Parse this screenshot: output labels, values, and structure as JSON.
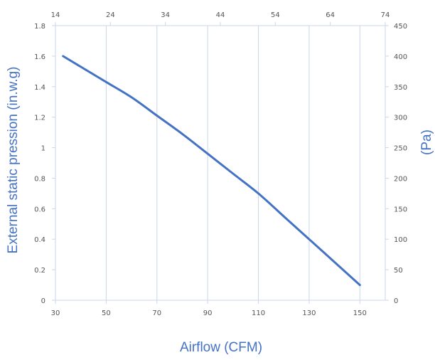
{
  "colors": {
    "series": "#4472c4",
    "grid": "#c9d7ec",
    "tick_text": "#555555",
    "axis_title": "#4472c4"
  },
  "chart_data": {
    "type": "line",
    "title": "",
    "xlabel": "Airflow (CFM)",
    "ylabel": "External static pression (in.w.g)",
    "y2label": "(Pa)",
    "xlim": [
      30,
      160
    ],
    "ylim": [
      0,
      1.8
    ],
    "x2lim": [
      14,
      74
    ],
    "y2lim": [
      0,
      450
    ],
    "x_ticks": [
      "30",
      "50",
      "70",
      "90",
      "110",
      "130",
      "150"
    ],
    "y_ticks": [
      "0",
      "0.2",
      "0.4",
      "0.6",
      "0.8",
      "1",
      "1.2",
      "1.4",
      "1.6",
      "1.8"
    ],
    "x2_ticks": [
      "14",
      "24",
      "34",
      "44",
      "54",
      "64",
      "74"
    ],
    "y2_ticks": [
      "0",
      "50",
      "100",
      "150",
      "200",
      "250",
      "300",
      "350",
      "400",
      "450"
    ],
    "grid": true,
    "series": [
      {
        "x": [
          33,
          40,
          50,
          60,
          70,
          80,
          90,
          100,
          110,
          120,
          130,
          140,
          150
        ],
        "y": [
          1.6,
          1.53,
          1.43,
          1.33,
          1.21,
          1.09,
          0.96,
          0.83,
          0.7,
          0.55,
          0.4,
          0.25,
          0.1
        ]
      }
    ]
  }
}
